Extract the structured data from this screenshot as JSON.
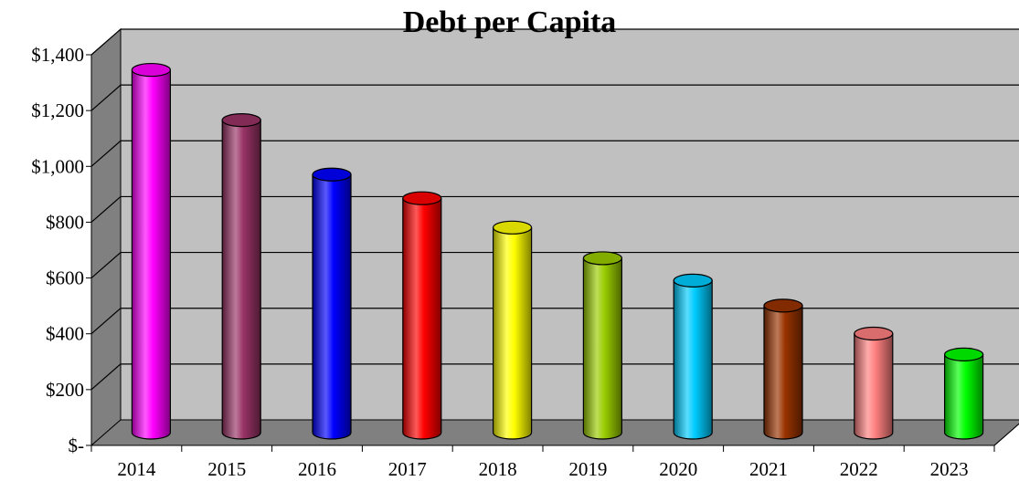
{
  "chart_data": {
    "type": "bar",
    "title": "Debt per Capita",
    "xlabel": "",
    "ylabel": "",
    "categories": [
      "2014",
      "2015",
      "2016",
      "2017",
      "2018",
      "2019",
      "2020",
      "2021",
      "2022",
      "2023"
    ],
    "values": [
      1300,
      1120,
      925,
      840,
      735,
      625,
      545,
      455,
      355,
      280
    ],
    "ylim": [
      0,
      1400
    ],
    "y_ticks": [
      0,
      200,
      400,
      600,
      800,
      1000,
      1200,
      1400
    ],
    "y_tick_labels": [
      "$-",
      "$200",
      "$400",
      "$600",
      "$800",
      "$1,000",
      "$1,200",
      "$1,400"
    ],
    "bar_colors": [
      "#ff00ff",
      "#993366",
      "#0000ff",
      "#ff0000",
      "#ffff00",
      "#99cc00",
      "#00ccff",
      "#993300",
      "#ff8080",
      "#00ff00"
    ],
    "grid": true,
    "legend": "none",
    "style": "3d-cylinder",
    "wall_color": "#c0c0c0",
    "floor_color": "#808080"
  }
}
